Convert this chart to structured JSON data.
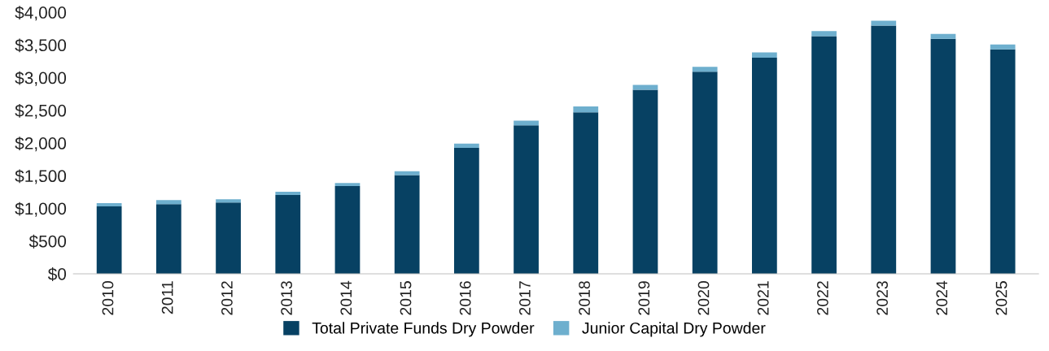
{
  "chart_data": {
    "type": "bar",
    "stacked": true,
    "categories": [
      "2010",
      "2011",
      "2012",
      "2013",
      "2014",
      "2015",
      "2016",
      "2017",
      "2018",
      "2019",
      "2020",
      "2021",
      "2022",
      "2023",
      "2024",
      "2025"
    ],
    "series": [
      {
        "name": "Total Private Funds Dry Powder",
        "color": "#074163",
        "values": [
          1030,
          1066,
          1090,
          1206,
          1342,
          1509,
          1927,
          2272,
          2470,
          2815,
          3092,
          3307,
          3636,
          3797,
          3594,
          3432
        ]
      },
      {
        "name": "Junior Capital Dry Powder",
        "color": "#6eafce",
        "values": [
          50,
          60,
          50,
          50,
          45,
          60,
          65,
          70,
          90,
          75,
          75,
          80,
          75,
          75,
          75,
          75
        ]
      }
    ],
    "ylim": [
      0,
      4000
    ],
    "yticks": [
      {
        "value": 0,
        "label": "$0"
      },
      {
        "value": 500,
        "label": "$500"
      },
      {
        "value": 1000,
        "label": "$1,000"
      },
      {
        "value": 1500,
        "label": "$1,500"
      },
      {
        "value": 2000,
        "label": "$2,000"
      },
      {
        "value": 2500,
        "label": "$2,500"
      },
      {
        "value": 3000,
        "label": "$3,000"
      },
      {
        "value": 3500,
        "label": "$3,500"
      },
      {
        "value": 4000,
        "label": "$4,000"
      }
    ],
    "grid": false,
    "legend": "bottom"
  }
}
